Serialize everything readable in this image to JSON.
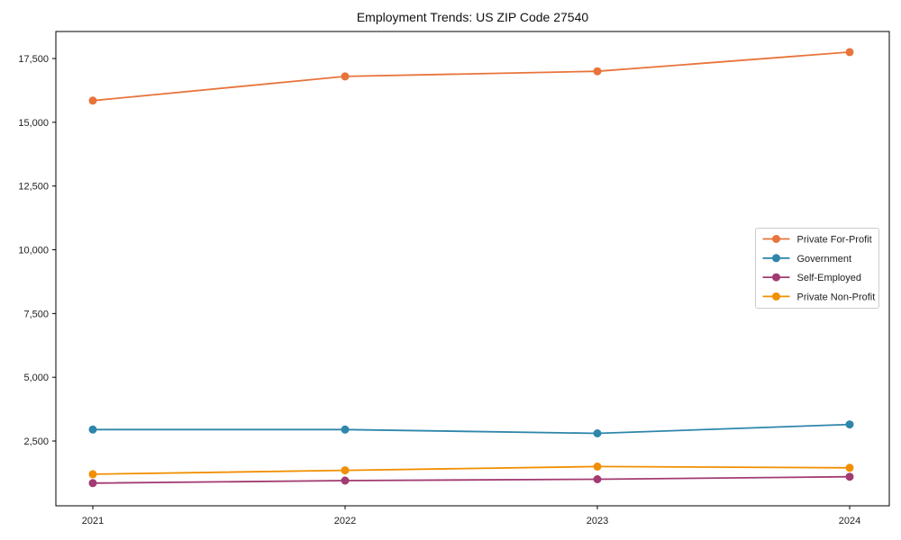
{
  "chart_data": {
    "type": "line",
    "title": "Employment Trends: US ZIP Code 27540",
    "xlabel": "",
    "ylabel": "",
    "x": [
      2021,
      2022,
      2023,
      2024
    ],
    "yticks": [
      2500,
      5000,
      7500,
      10000,
      12500,
      15000,
      17500
    ],
    "ylim": [
      -40,
      18560
    ],
    "grid": false,
    "legend_position": "center-right",
    "legend_border_color": "#cccccc",
    "marker": "circle",
    "background_color": "#ffffff",
    "spine_color": "#000000",
    "series": [
      {
        "name": "Private For-Profit",
        "color": "#E8743B",
        "values": [
          15850,
          16800,
          17000,
          17750
        ]
      },
      {
        "name": "Government",
        "color": "#2E86AB",
        "values": [
          2950,
          2950,
          2800,
          3150
        ]
      },
      {
        "name": "Self-Employed",
        "color": "#A23B72",
        "values": [
          850,
          950,
          1000,
          1100
        ]
      },
      {
        "name": "Private Non-Profit",
        "color": "#F18F01",
        "values": [
          1200,
          1350,
          1500,
          1450
        ]
      }
    ]
  }
}
